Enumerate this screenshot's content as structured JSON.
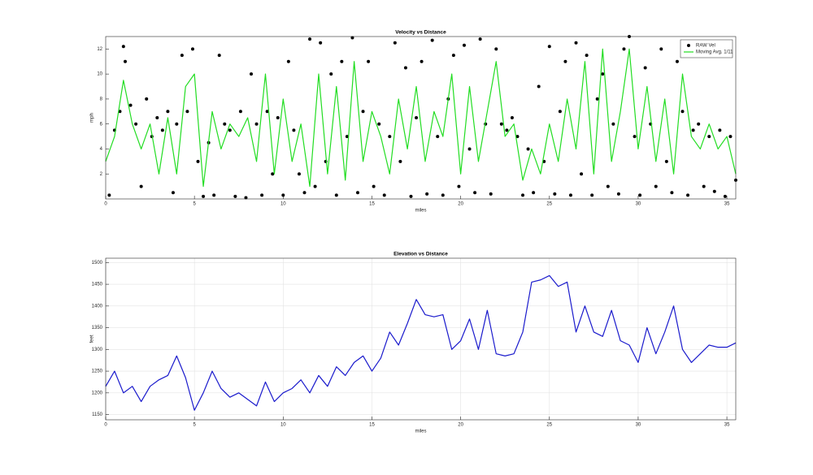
{
  "chart_data": [
    {
      "type": "scatter",
      "title": "Velocity vs Distance",
      "xlabel": "miles",
      "ylabel": "mph",
      "xlim": [
        0,
        35.5
      ],
      "ylim": [
        0,
        13
      ],
      "xticks": [
        0,
        5,
        10,
        15,
        20,
        25,
        30,
        35
      ],
      "yticks": [
        2,
        4,
        6,
        8,
        10,
        12
      ],
      "grid": false,
      "legend": "northeast",
      "series": [
        {
          "name": "RAW Vel",
          "type": "scatter",
          "color": "#000000",
          "x": [
            0.2,
            0.5,
            0.8,
            1.0,
            1.1,
            1.4,
            1.7,
            2.0,
            2.3,
            2.6,
            2.9,
            3.2,
            3.5,
            3.8,
            4.0,
            4.3,
            4.6,
            4.9,
            5.2,
            5.5,
            5.8,
            6.1,
            6.4,
            6.7,
            7.0,
            7.3,
            7.6,
            7.9,
            8.2,
            8.5,
            8.8,
            9.1,
            9.4,
            9.7,
            10.0,
            10.3,
            10.6,
            10.9,
            11.2,
            11.5,
            11.8,
            12.1,
            12.4,
            12.7,
            13.0,
            13.3,
            13.6,
            13.9,
            14.2,
            14.5,
            14.8,
            15.1,
            15.4,
            15.7,
            16.0,
            16.3,
            16.6,
            16.9,
            17.2,
            17.5,
            17.8,
            18.1,
            18.4,
            18.7,
            19.0,
            19.3,
            19.6,
            19.9,
            20.2,
            20.5,
            20.8,
            21.1,
            21.4,
            21.7,
            22.0,
            22.3,
            22.6,
            22.9,
            23.2,
            23.5,
            23.8,
            24.1,
            24.4,
            24.7,
            25.0,
            25.3,
            25.6,
            25.9,
            26.2,
            26.5,
            26.8,
            27.1,
            27.4,
            27.7,
            28.0,
            28.3,
            28.6,
            28.9,
            29.2,
            29.5,
            29.8,
            30.1,
            30.4,
            30.7,
            31.0,
            31.3,
            31.6,
            31.9,
            32.2,
            32.5,
            32.8,
            33.1,
            33.4,
            33.7,
            34.0,
            34.3,
            34.6,
            34.9,
            35.2,
            35.5
          ],
          "values": [
            0.3,
            5.5,
            7,
            12.2,
            11,
            7.5,
            6,
            1,
            8,
            5,
            6.5,
            5.5,
            7,
            0.5,
            6,
            11.5,
            7,
            12,
            3,
            0.2,
            4.5,
            0.3,
            11.5,
            6,
            5.5,
            0.2,
            7,
            0.1,
            10,
            6,
            0.3,
            7,
            2,
            6.5,
            0.3,
            11,
            5.5,
            2,
            0.5,
            12.8,
            1,
            12.5,
            3,
            10,
            0.3,
            11,
            5,
            12.9,
            0.5,
            7,
            11,
            1,
            6,
            0.3,
            5,
            12.5,
            3,
            10.5,
            0.2,
            6.5,
            11,
            0.4,
            12.7,
            5,
            0.3,
            8,
            11.5,
            1,
            12.3,
            4,
            0.5,
            12.8,
            6,
            0.4,
            12,
            6,
            5.5,
            6.5,
            5,
            0.3,
            4,
            0.5,
            9,
            3,
            12.2,
            0.4,
            7,
            11,
            0.3,
            12.5,
            2,
            11.5,
            0.3,
            8,
            10,
            1,
            6,
            0.4,
            12,
            13,
            5,
            0.3,
            10.5,
            6,
            1,
            12,
            3,
            0.5,
            11,
            7,
            0.3,
            5.5,
            6,
            1,
            5,
            0.6,
            5.5,
            0.2,
            5,
            1.5
          ]
        },
        {
          "name": "Moving Avg. 1/11",
          "type": "line",
          "color": "#22dd22",
          "x": [
            0,
            0.5,
            1,
            1.5,
            2,
            2.5,
            3,
            3.5,
            4,
            4.5,
            5,
            5.5,
            6,
            6.5,
            7,
            7.5,
            8,
            8.5,
            9,
            9.5,
            10,
            10.5,
            11,
            11.5,
            12,
            12.5,
            13,
            13.5,
            14,
            14.5,
            15,
            15.5,
            16,
            16.5,
            17,
            17.5,
            18,
            18.5,
            19,
            19.5,
            20,
            20.5,
            21,
            21.5,
            22,
            22.5,
            23,
            23.5,
            24,
            24.5,
            25,
            25.5,
            26,
            26.5,
            27,
            27.5,
            28,
            28.5,
            29,
            29.5,
            30,
            30.5,
            31,
            31.5,
            32,
            32.5,
            33,
            33.5,
            34,
            34.5,
            35,
            35.5
          ],
          "values": [
            3,
            5,
            9.5,
            6,
            4,
            6,
            2,
            6.5,
            2,
            9,
            10,
            1,
            7,
            4,
            6,
            5,
            6.5,
            3,
            10,
            2,
            8,
            3,
            6,
            1,
            10,
            2,
            9,
            1.5,
            11,
            3,
            7,
            5,
            2,
            8,
            4,
            9,
            3,
            7,
            5,
            10,
            2,
            9,
            3,
            7,
            11,
            5,
            6,
            1.5,
            4,
            2,
            6,
            3,
            8,
            4,
            11,
            2,
            12,
            3,
            7,
            12,
            4,
            9,
            3,
            8,
            2,
            10,
            5,
            4,
            6,
            4,
            5,
            2
          ]
        }
      ]
    },
    {
      "type": "line",
      "title": "Elevation vs Distance",
      "xlabel": "miles",
      "ylabel": "feet",
      "xlim": [
        0,
        35.5
      ],
      "ylim": [
        1138,
        1510
      ],
      "xticks": [
        0,
        5,
        10,
        15,
        20,
        25,
        30,
        35
      ],
      "yticks": [
        1150,
        1200,
        1250,
        1300,
        1350,
        1400,
        1450,
        1500
      ],
      "grid": true,
      "series": [
        {
          "type": "line",
          "color": "#1a1acc",
          "x": [
            0,
            0.5,
            1,
            1.5,
            2,
            2.5,
            3,
            3.5,
            4,
            4.5,
            5,
            5.5,
            6,
            6.5,
            7,
            7.5,
            8,
            8.5,
            9,
            9.5,
            10,
            10.5,
            11,
            11.5,
            12,
            12.5,
            13,
            13.5,
            14,
            14.5,
            15,
            15.5,
            16,
            16.5,
            17,
            17.5,
            18,
            18.5,
            19,
            19.5,
            20,
            20.5,
            21,
            21.5,
            22,
            22.5,
            23,
            23.5,
            24,
            24.5,
            25,
            25.5,
            26,
            26.5,
            27,
            27.5,
            28,
            28.5,
            29,
            29.5,
            30,
            30.5,
            31,
            31.5,
            32,
            32.5,
            33,
            33.5,
            34,
            34.5,
            35,
            35.5
          ],
          "values": [
            1215,
            1250,
            1200,
            1215,
            1180,
            1215,
            1230,
            1240,
            1285,
            1235,
            1160,
            1200,
            1250,
            1210,
            1190,
            1200,
            1185,
            1170,
            1225,
            1180,
            1200,
            1210,
            1230,
            1200,
            1240,
            1215,
            1260,
            1240,
            1270,
            1285,
            1250,
            1280,
            1340,
            1310,
            1360,
            1415,
            1380,
            1375,
            1380,
            1300,
            1320,
            1370,
            1300,
            1390,
            1290,
            1285,
            1290,
            1340,
            1455,
            1460,
            1470,
            1445,
            1455,
            1340,
            1400,
            1340,
            1330,
            1390,
            1320,
            1310,
            1270,
            1350,
            1290,
            1340,
            1400,
            1300,
            1270,
            1290,
            1310,
            1305,
            1305,
            1315
          ]
        }
      ]
    }
  ]
}
